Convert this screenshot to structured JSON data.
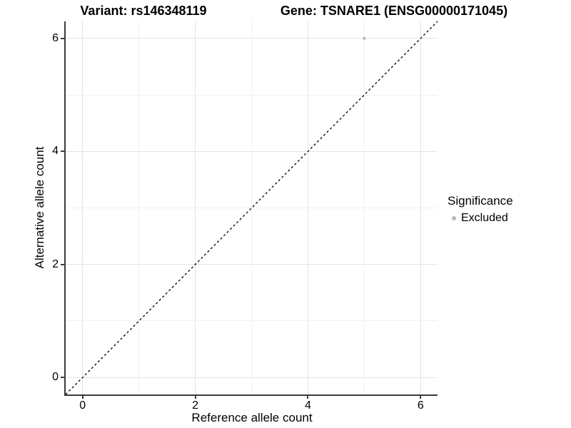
{
  "header": {
    "left_title": "Variant: rs146348119",
    "right_title": "Gene: TSNARE1 (ENSG00000171045)"
  },
  "chart_data": {
    "type": "scatter",
    "xlabel": "Reference allele count",
    "ylabel": "Alternative allele count",
    "xlim": [
      -0.3,
      6.3
    ],
    "ylim": [
      -0.3,
      6.3
    ],
    "x_ticks": [
      0,
      2,
      4,
      6
    ],
    "y_ticks": [
      0,
      2,
      4,
      6
    ],
    "grid_major": [
      0,
      2,
      4,
      6
    ],
    "grid_minor": [
      1,
      3,
      5
    ],
    "grid_on": true,
    "points": [
      {
        "x": 5,
        "y": 6,
        "series": "Excluded"
      }
    ],
    "reference_line": {
      "kind": "identity",
      "slope": 1,
      "intercept": 0,
      "style": "dashed",
      "color": "#000000"
    },
    "legend": {
      "title": "Significance",
      "position": "right",
      "entries": [
        {
          "label": "Excluded",
          "color": "#b9b9b9",
          "marker": "circle"
        }
      ]
    },
    "colors": {
      "point": "#b9b9b9",
      "grid_major": "#e4e4e4",
      "grid_minor": "#f0f0f0",
      "axis": "#3c3c3c"
    }
  }
}
